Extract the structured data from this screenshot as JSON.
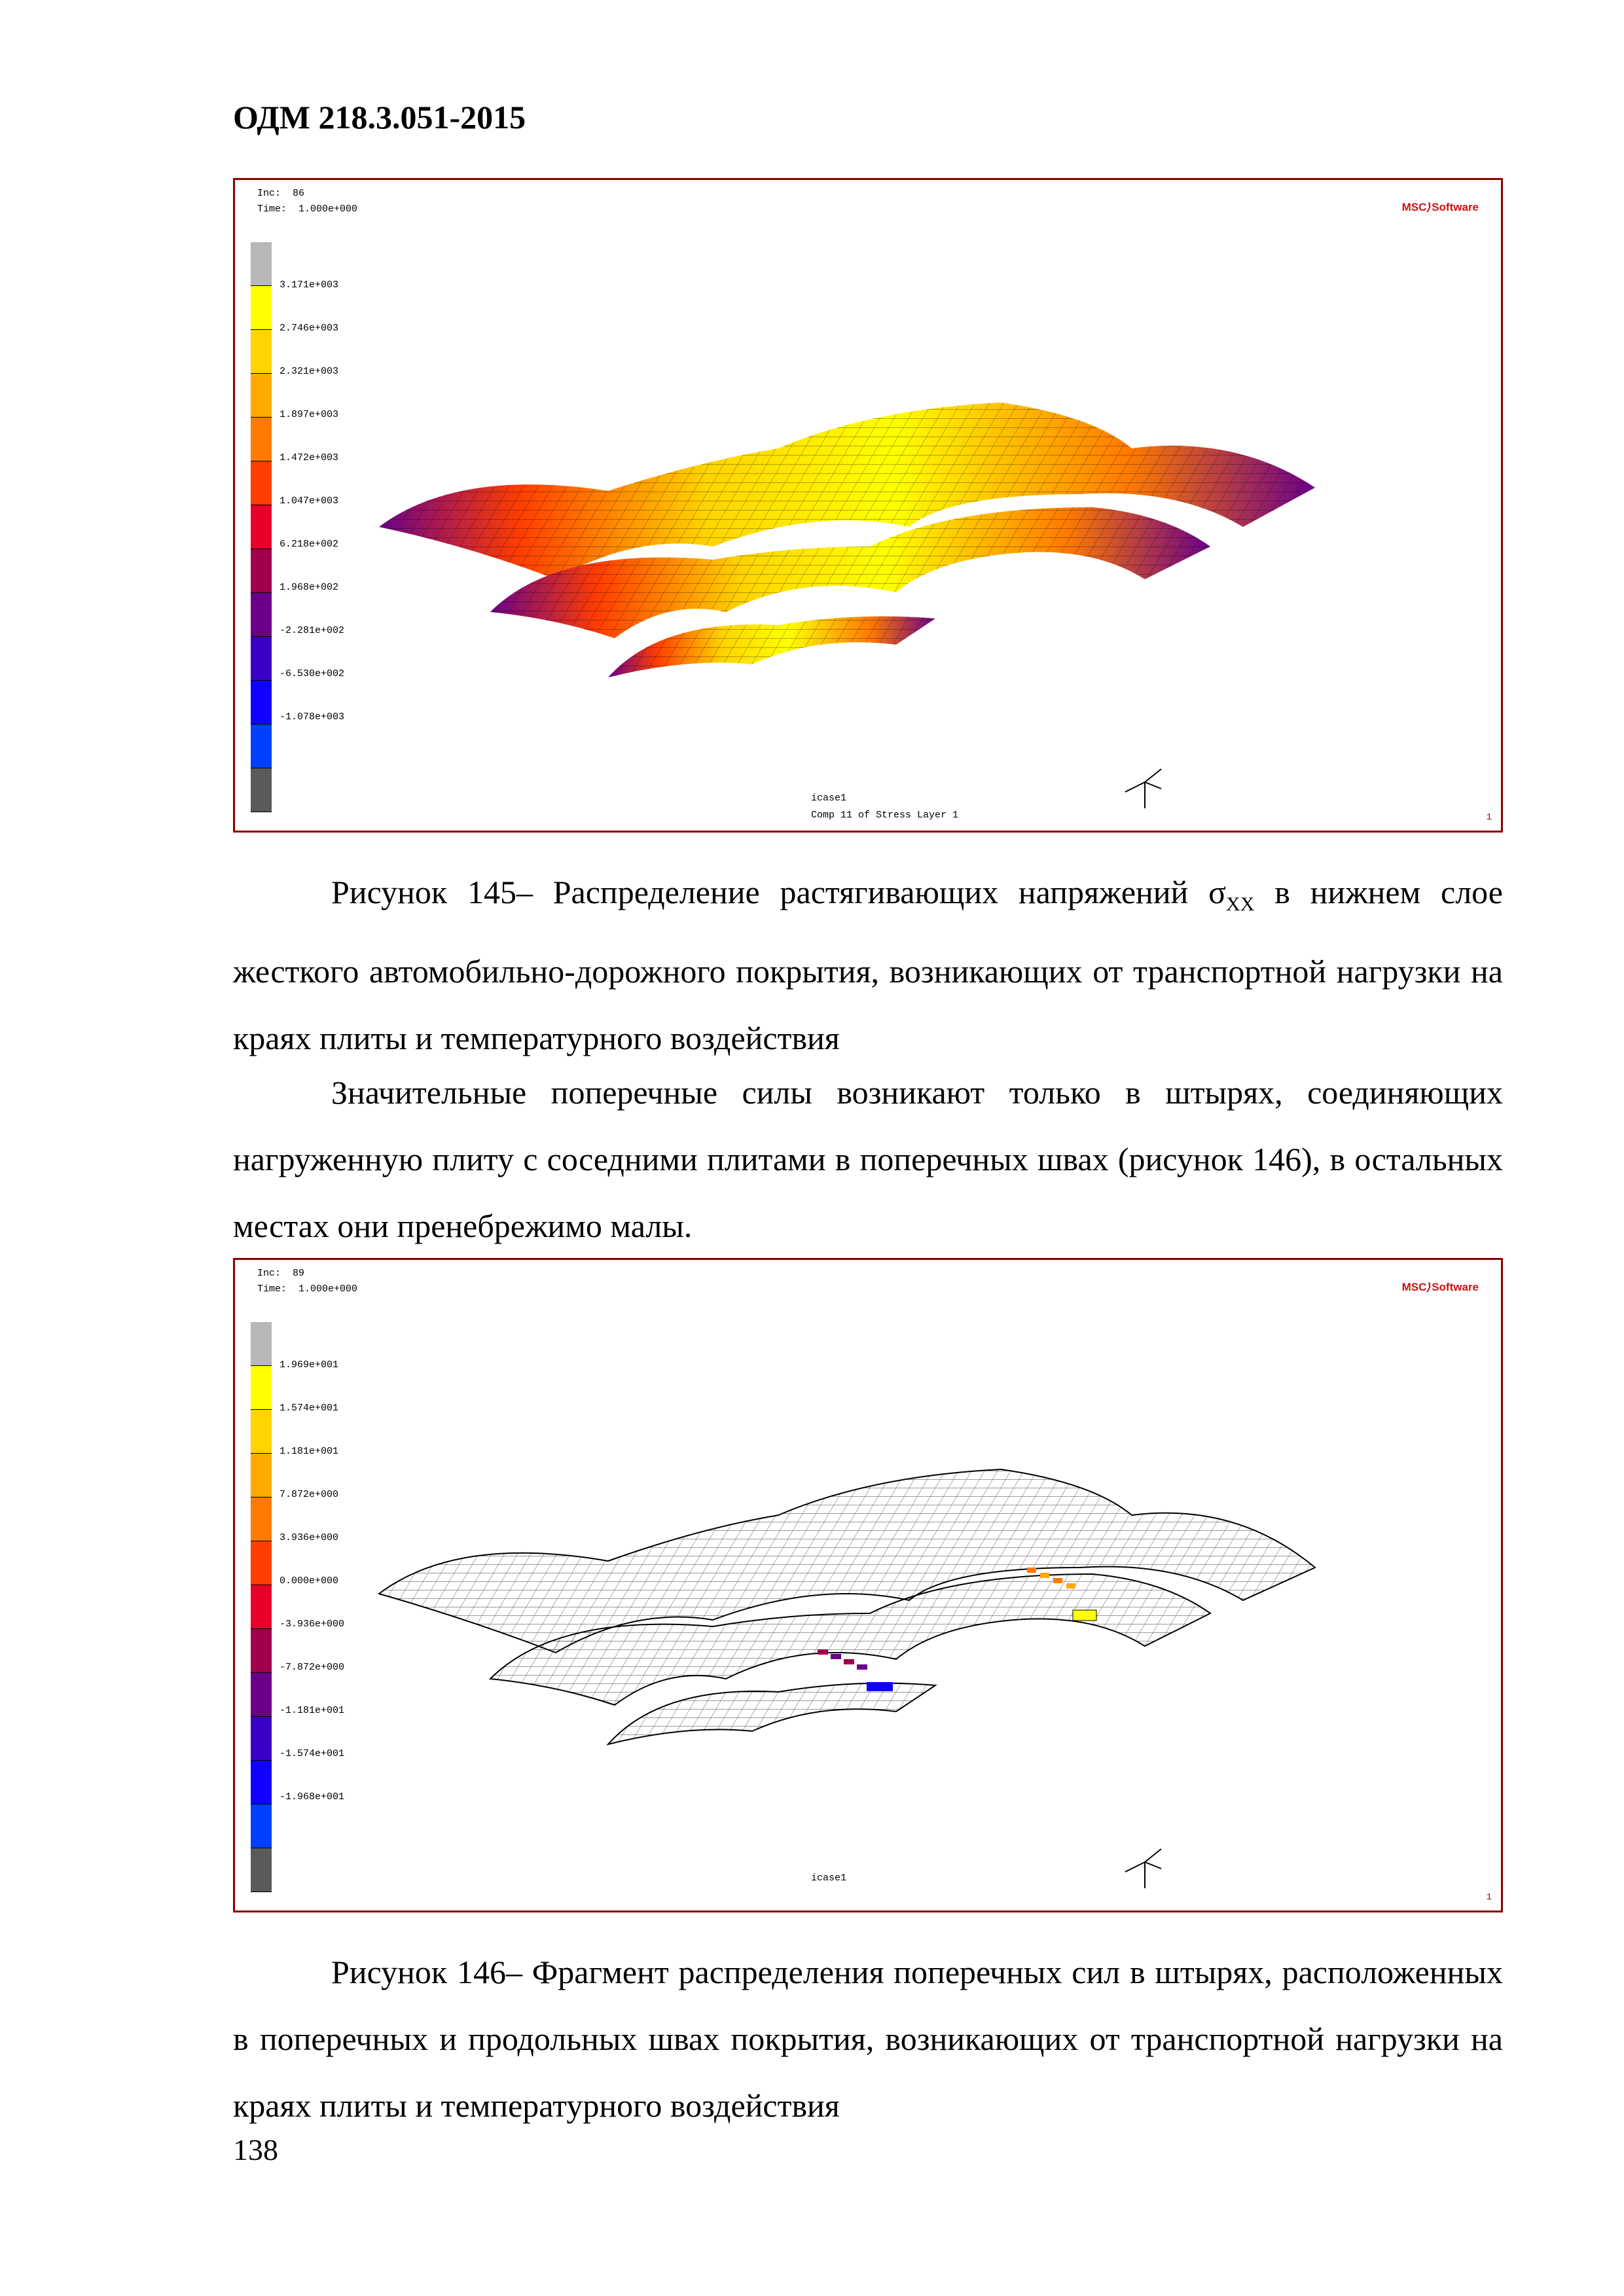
{
  "header": {
    "doc_code": "ОДМ 218.3.051-2015"
  },
  "figure1": {
    "inc_label": "Inc:  86",
    "time_label": "Time:  1.000e+000",
    "logo": "MSC Software",
    "logo_a": "MSC",
    "logo_b": "Software",
    "legend_values": [
      "3.171e+003",
      "2.746e+003",
      "2.321e+003",
      "1.897e+003",
      "1.472e+003",
      "1.047e+003",
      "6.218e+002",
      "1.968e+002",
      "-2.281e+002",
      "-6.530e+002",
      "-1.078e+003"
    ],
    "legend_colors": [
      "#b8b8b8",
      "#ffff00",
      "#ffd400",
      "#ffaa00",
      "#ff7a00",
      "#ff3d00",
      "#e8002a",
      "#a0004a",
      "#6a008a",
      "#3a00c8",
      "#1000ff",
      "#0040ff",
      "#5a5a5a"
    ],
    "job_label": "icase1",
    "caption_tool": "Comp 11 of Stress Layer 1",
    "fig_index": "1"
  },
  "caption145": {
    "lead": "Рисунок 145– Распределение растягивающих напряжений σ",
    "sub": "XX",
    "tail": " в нижнем слое жесткого автомобильно-дорожного покрытия, возникающих от транспортной нагрузки на краях плиты и температурного воздействия"
  },
  "body_paragraph": "Значительные поперечные силы возникают только в штырях, соединяющих нагруженную плиту с соседними плитами в поперечных швах (рисунок 146), в остальных местах они пренебрежимо малы.",
  "figure2": {
    "inc_label": "Inc:  89",
    "time_label": "Time:  1.000e+000",
    "logo": "MSC Software",
    "logo_a": "MSC",
    "logo_b": "Software",
    "legend_values": [
      "1.969e+001",
      "1.574e+001",
      "1.181e+001",
      "7.872e+000",
      "3.936e+000",
      "0.000e+000",
      "-3.936e+000",
      "-7.872e+000",
      "-1.181e+001",
      "-1.574e+001",
      "-1.968e+001"
    ],
    "legend_colors": [
      "#b8b8b8",
      "#ffff00",
      "#ffd400",
      "#ffaa00",
      "#ff7a00",
      "#ff3d00",
      "#e8002a",
      "#a0004a",
      "#6a008a",
      "#3a00c8",
      "#1000ff",
      "#0040ff",
      "#5a5a5a"
    ],
    "job_label": "icase1",
    "fig_index": "1"
  },
  "caption146": "Рисунок 146– Фрагмент распределения поперечных сил в штырях, расположенных в поперечных и продольных швах покрытия, возникающих от транспортной нагрузки на краях плиты и температурного воздействия",
  "page_number": "138"
}
